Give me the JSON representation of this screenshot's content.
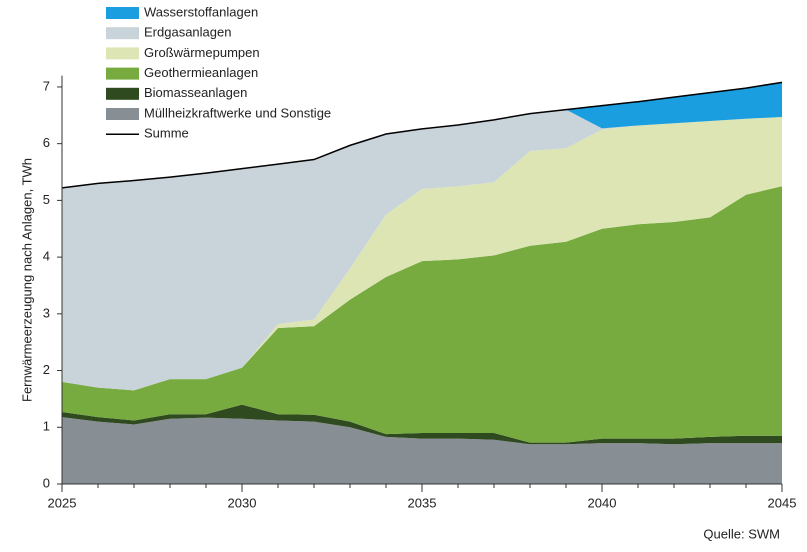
{
  "chart_data": {
    "type": "stacked_area",
    "y_label": "Fernwärmeerzeugung nach Anlagen, TWh",
    "source": "Quelle: SWM",
    "x": [
      2025,
      2026,
      2027,
      2028,
      2029,
      2030,
      2031,
      2032,
      2033,
      2034,
      2035,
      2036,
      2037,
      2038,
      2039,
      2040,
      2041,
      2042,
      2043,
      2044,
      2045
    ],
    "series": [
      {
        "name": "Müllheizkraftwerke und Sonstige",
        "color": "#878e94",
        "values": [
          1.18,
          1.1,
          1.05,
          1.15,
          1.17,
          1.15,
          1.12,
          1.1,
          1.0,
          0.83,
          0.8,
          0.8,
          0.78,
          0.7,
          0.7,
          0.72,
          0.72,
          0.7,
          0.72,
          0.72,
          0.72
        ]
      },
      {
        "name": "Biomasseanlagen",
        "color": "#2f4a1f",
        "values": [
          0.09,
          0.08,
          0.07,
          0.08,
          0.06,
          0.25,
          0.11,
          0.12,
          0.1,
          0.05,
          0.1,
          0.1,
          0.12,
          0.03,
          0.03,
          0.08,
          0.08,
          0.1,
          0.11,
          0.13,
          0.13
        ]
      },
      {
        "name": "Geothermieanlagen",
        "color": "#77ab3f",
        "values": [
          0.53,
          0.52,
          0.53,
          0.62,
          0.62,
          0.65,
          1.52,
          1.56,
          2.15,
          2.77,
          3.03,
          3.06,
          3.13,
          3.47,
          3.54,
          3.7,
          3.78,
          3.82,
          3.87,
          4.25,
          4.4
        ]
      },
      {
        "name": "Großwärmepumpen",
        "color": "#dde5b5",
        "values": [
          0,
          0,
          0,
          0,
          0,
          0,
          0.07,
          0.12,
          0.55,
          1.1,
          1.27,
          1.29,
          1.29,
          1.67,
          1.65,
          1.75,
          1.74,
          1.74,
          1.7,
          1.34,
          1.22
        ]
      },
      {
        "name": "Erdgasanlagen",
        "color": "#c9d3da",
        "values": [
          3.42,
          3.6,
          3.7,
          3.56,
          3.63,
          3.51,
          2.82,
          2.82,
          2.17,
          1.42,
          1.06,
          1.08,
          1.1,
          0.66,
          0.68,
          0.02,
          0,
          0,
          0,
          0,
          0
        ]
      },
      {
        "name": "Wasserstoffanlagen",
        "color": "#1a9ee0",
        "values": [
          0,
          0,
          0,
          0,
          0,
          0,
          0,
          0,
          0,
          0,
          0,
          0,
          0,
          0,
          0,
          0.4,
          0.42,
          0.46,
          0.5,
          0.54,
          0.61
        ]
      }
    ],
    "total_line": {
      "name": "Summe",
      "color": "#000000",
      "values": [
        5.22,
        5.3,
        5.35,
        5.41,
        5.48,
        5.56,
        5.64,
        5.72,
        5.97,
        6.17,
        6.26,
        6.33,
        6.42,
        6.53,
        6.6,
        6.67,
        6.74,
        6.82,
        6.9,
        6.98,
        7.08
      ]
    },
    "xlim": [
      2025,
      2045
    ],
    "xticks": [
      2025,
      2030,
      2035,
      2040,
      2045
    ],
    "ylim": [
      0,
      7.2
    ],
    "yticks": [
      0,
      1,
      2,
      3,
      4,
      5,
      6,
      7
    ]
  }
}
